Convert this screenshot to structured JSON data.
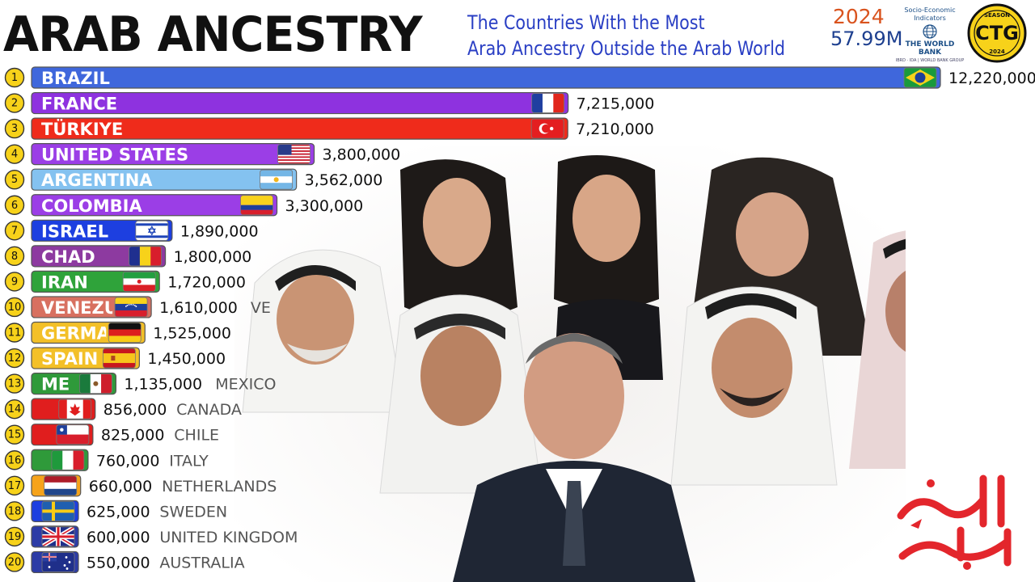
{
  "header": {
    "title": "ARAB ANCESTRY",
    "subtitle_line1": "The Countries With the Most",
    "subtitle_line2": "Arab Ancestry Outside the Arab World",
    "year": "2024",
    "total": "57.99M"
  },
  "source": {
    "line1": "Socio-Economic",
    "line2": "Indicators",
    "name": "THE WORLD BANK",
    "tagline": "IBRD · IDA | WORLD BANK GROUP"
  },
  "badge": {
    "top": "SEASON",
    "mid": "CTG",
    "bottom": "2024"
  },
  "colors": {
    "brazil": "#3f67dc",
    "france": "#8e32df",
    "turkiye": "#ef2b1b",
    "united-states": "#9b3ee6",
    "argentina": "#84c2f0",
    "colombia": "#9b3ee6",
    "israel": "#1d3fe0",
    "chad": "#8d3aa0",
    "iran": "#2fa33a",
    "venezuela": "#d87060",
    "germany": "#f3c028",
    "spain": "#f3c028",
    "mexico": "#2f9a3a",
    "canada": "#e01e1e",
    "chile": "#e01e1e",
    "italy": "#2f9a3a",
    "netherlands": "#f6a31a",
    "sweden": "#1d3fe0",
    "united-kingdom": "#2c3ba6",
    "australia": "#2c3ba6",
    "rank-circle": "#f7d21a",
    "calligraphy": "#e3262c"
  },
  "chart_data": {
    "type": "bar",
    "orientation": "horizontal",
    "categories": [
      "BRAZIL",
      "FRANCE",
      "TÜRKIYE",
      "UNITED STATES",
      "ARGENTINA",
      "COLOMBIA",
      "ISRAEL",
      "CHAD",
      "IRAN",
      "VENEZUELA",
      "GERMANY",
      "SPAIN",
      "MEXICO",
      "CANADA",
      "CHILE",
      "ITALY",
      "NETHERLANDS",
      "SWEDEN",
      "UNITED KINGDOM",
      "AUSTRALIA"
    ],
    "labels_inside": [
      "BRAZIL",
      "FRANCE",
      "TÜRKIYE",
      "UNITED STATES",
      "ARGENTINA",
      "COLOMBIA",
      "ISRAEL",
      "CHAD",
      "IRAN",
      "VENEZU",
      "GERMA",
      "SPAIN",
      "ME",
      "",
      "",
      "",
      "",
      "",
      "",
      ""
    ],
    "labels_outside": [
      "",
      "",
      "",
      "",
      "",
      "",
      "",
      "",
      "",
      "VE",
      "",
      "",
      "MEXICO",
      "CANADA",
      "CHILE",
      "ITALY",
      "NETHERLANDS",
      "SWEDEN",
      "UNITED KINGDOM",
      "AUSTRALIA"
    ],
    "values": [
      12220000,
      7215000,
      7210000,
      3800000,
      3562000,
      3300000,
      1890000,
      1800000,
      1720000,
      1610000,
      1525000,
      1450000,
      1135000,
      856000,
      825000,
      760000,
      660000,
      625000,
      600000,
      550000
    ],
    "value_labels": [
      "12,220,000",
      "7,215,000",
      "7,210,000",
      "3,800,000",
      "3,562,000",
      "3,300,000",
      "1,890,000",
      "1,800,000",
      "1,720,000",
      "1,610,000",
      "1,525,000",
      "1,450,000",
      "1,135,000",
      "856,000",
      "825,000",
      "760,000",
      "660,000",
      "625,000",
      "600,000",
      "550,000"
    ],
    "ranks": [
      "1",
      "2",
      "3",
      "4",
      "5",
      "6",
      "7",
      "8",
      "9",
      "10",
      "11",
      "12",
      "13",
      "14",
      "15",
      "16",
      "17",
      "18",
      "19",
      "20"
    ],
    "flags": [
      "brazil-flag-icon",
      "france-flag-icon",
      "turkiye-flag-icon",
      "united-states-flag-icon",
      "argentina-flag-icon",
      "colombia-flag-icon",
      "israel-flag-icon",
      "chad-flag-icon",
      "iran-flag-icon",
      "venezuela-flag-icon",
      "germany-flag-icon",
      "spain-flag-icon",
      "mexico-flag-icon",
      "canada-flag-icon",
      "chile-flag-icon",
      "italy-flag-icon",
      "netherlands-flag-icon",
      "sweden-flag-icon",
      "united-kingdom-flag-icon",
      "australia-flag-icon"
    ],
    "xlim": [
      0,
      12220000
    ],
    "grid": false,
    "legend": "none"
  }
}
